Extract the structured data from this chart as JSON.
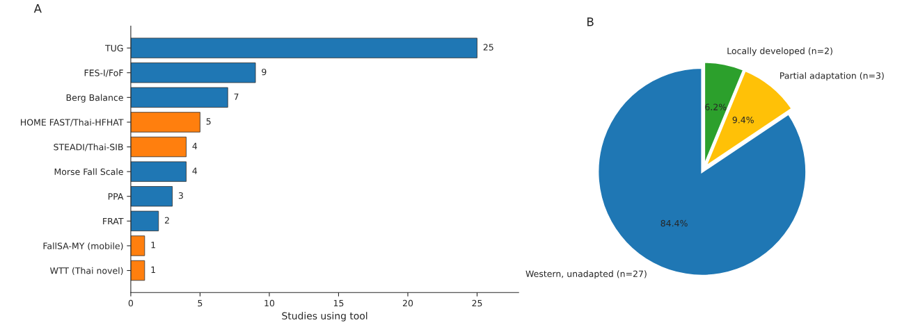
{
  "chart_data": [
    {
      "type": "bar",
      "title": "A",
      "orientation": "horizontal",
      "xlabel": "Studies using tool",
      "categories": [
        "TUG",
        "FES-I/FoF",
        "Berg Balance",
        "HOME FAST/Thai-HFHAT",
        "STEADI/Thai-SIB",
        "Morse Fall Scale",
        "PPA",
        "FRAT",
        "FallSA-MY (mobile)",
        "WTT (Thai novel)"
      ],
      "values": [
        25,
        9,
        7,
        5,
        4,
        4,
        3,
        2,
        1,
        1
      ],
      "colors": [
        "#1f77b4",
        "#1f77b4",
        "#1f77b4",
        "#ff7f0e",
        "#ff7f0e",
        "#1f77b4",
        "#1f77b4",
        "#1f77b4",
        "#ff7f0e",
        "#ff7f0e"
      ],
      "xlim": [
        0,
        28
      ],
      "xticks": [
        0,
        5,
        10,
        15,
        20,
        25
      ],
      "data_labels": true,
      "grid": false,
      "legend": false
    },
    {
      "type": "pie",
      "title": "B",
      "categories": [
        "Locally developed (n=2)",
        "Partial adaptation (n=3)",
        "Western, unadapted (n=27)"
      ],
      "values": [
        6.2,
        9.4,
        84.4
      ],
      "colors": [
        "#2ca02c",
        "#ffc107",
        "#1f77b4"
      ],
      "value_labels": [
        "6.2%",
        "9.4%",
        "84.4%"
      ],
      "legend": false
    }
  ]
}
